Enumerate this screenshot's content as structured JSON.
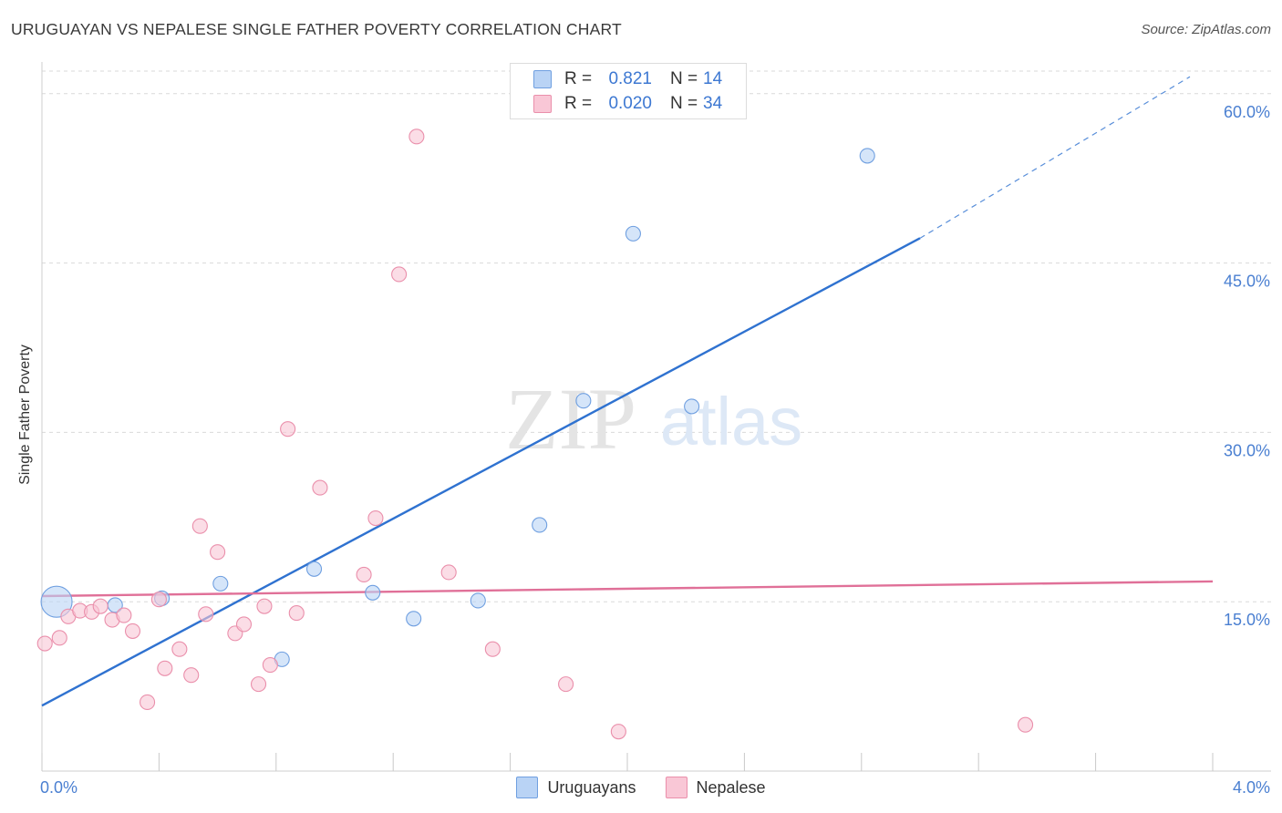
{
  "title": "URUGUAYAN VS NEPALESE SINGLE FATHER POVERTY CORRELATION CHART",
  "source": "Source: ZipAtlas.com",
  "watermark": {
    "zip": "ZIP",
    "atlas": "atlas"
  },
  "legend": {
    "rows": [
      {
        "r_label": "R =",
        "r_value": "0.821",
        "n_label": "N =",
        "n_value": "14",
        "fill": "#b9d3f5",
        "stroke": "#6f9fe0"
      },
      {
        "r_label": "R =",
        "r_value": "0.020",
        "n_label": "N =",
        "n_value": "34",
        "fill": "#f9c7d6",
        "stroke": "#ea8fab"
      }
    ]
  },
  "bottom_legend": {
    "uruguayans": "Uruguayans",
    "nepalese": "Nepalese"
  },
  "chart_data": {
    "type": "scatter",
    "title": "URUGUAYAN VS NEPALESE SINGLE FATHER POVERTY CORRELATION CHART",
    "xlabel": "",
    "ylabel": "Single Father Poverty",
    "xlim": [
      0.0,
      4.0
    ],
    "ylim": [
      0.0,
      62.0
    ],
    "x_tick_labels": [
      "0.0%",
      "4.0%"
    ],
    "y_ticks": [
      15.0,
      30.0,
      45.0,
      60.0
    ],
    "y_tick_labels": [
      "15.0%",
      "30.0%",
      "45.0%",
      "60.0%"
    ],
    "series": [
      {
        "name": "Uruguayans",
        "color": "#6f9fe0",
        "fill": "#b9d3f5",
        "line_color": "#2f72d0",
        "points": [
          {
            "x": 0.05,
            "y": 15.0,
            "big": true
          },
          {
            "x": 0.25,
            "y": 14.7
          },
          {
            "x": 0.41,
            "y": 15.3
          },
          {
            "x": 0.61,
            "y": 16.6
          },
          {
            "x": 0.82,
            "y": 9.9
          },
          {
            "x": 0.93,
            "y": 17.9
          },
          {
            "x": 1.13,
            "y": 15.8
          },
          {
            "x": 1.27,
            "y": 13.5
          },
          {
            "x": 1.49,
            "y": 15.1
          },
          {
            "x": 1.7,
            "y": 21.8
          },
          {
            "x": 1.85,
            "y": 32.8
          },
          {
            "x": 2.02,
            "y": 47.6
          },
          {
            "x": 2.22,
            "y": 32.3
          },
          {
            "x": 2.82,
            "y": 54.5
          }
        ],
        "trend": {
          "x0": 0.0,
          "y0": 5.8,
          "x1": 3.0,
          "y1": 47.2,
          "dash_to_x": 4.0,
          "dash_to_y": 61.5
        }
      },
      {
        "name": "Nepalese",
        "color": "#ea8fab",
        "fill": "#f9c7d6",
        "line_color": "#e07098",
        "points": [
          {
            "x": 0.01,
            "y": 11.3
          },
          {
            "x": 0.06,
            "y": 11.8
          },
          {
            "x": 0.09,
            "y": 13.7
          },
          {
            "x": 0.13,
            "y": 14.2
          },
          {
            "x": 0.17,
            "y": 14.1
          },
          {
            "x": 0.2,
            "y": 14.6
          },
          {
            "x": 0.24,
            "y": 13.4
          },
          {
            "x": 0.28,
            "y": 13.8
          },
          {
            "x": 0.31,
            "y": 12.4
          },
          {
            "x": 0.36,
            "y": 6.1
          },
          {
            "x": 0.4,
            "y": 15.2
          },
          {
            "x": 0.42,
            "y": 9.1
          },
          {
            "x": 0.47,
            "y": 10.8
          },
          {
            "x": 0.51,
            "y": 8.5
          },
          {
            "x": 0.54,
            "y": 21.7
          },
          {
            "x": 0.56,
            "y": 13.9
          },
          {
            "x": 0.6,
            "y": 19.4
          },
          {
            "x": 0.66,
            "y": 12.2
          },
          {
            "x": 0.69,
            "y": 13.0
          },
          {
            "x": 0.74,
            "y": 7.7
          },
          {
            "x": 0.76,
            "y": 14.6
          },
          {
            "x": 0.78,
            "y": 9.4
          },
          {
            "x": 0.84,
            "y": 30.3
          },
          {
            "x": 0.87,
            "y": 14.0
          },
          {
            "x": 0.95,
            "y": 25.1
          },
          {
            "x": 1.1,
            "y": 17.4
          },
          {
            "x": 1.14,
            "y": 22.4
          },
          {
            "x": 1.22,
            "y": 44.0
          },
          {
            "x": 1.28,
            "y": 56.2
          },
          {
            "x": 1.39,
            "y": 17.6
          },
          {
            "x": 1.54,
            "y": 10.8
          },
          {
            "x": 1.79,
            "y": 7.7
          },
          {
            "x": 1.97,
            "y": 3.5
          },
          {
            "x": 3.36,
            "y": 4.1
          }
        ],
        "trend": {
          "x0": 0.0,
          "y0": 15.5,
          "x1": 4.0,
          "y1": 16.8
        }
      }
    ]
  }
}
